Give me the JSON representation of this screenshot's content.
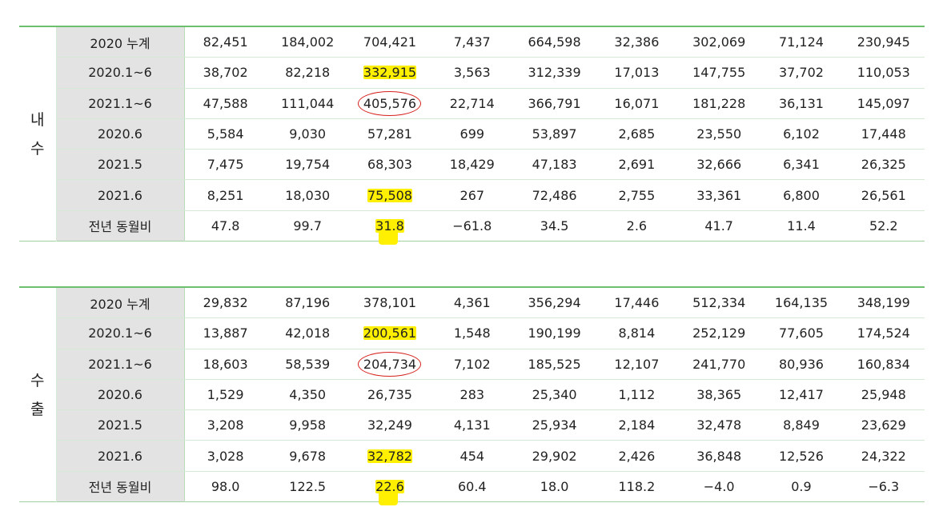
{
  "colors": {
    "accent_green": "#6cbf6c",
    "row_header_bg": "#e3e3e3",
    "highlight_yellow": "#ffef00",
    "circle_red": "#d6201c"
  },
  "domestic": {
    "group_label": [
      "내",
      "수"
    ],
    "rows": [
      {
        "label": "2020 누계",
        "values": [
          "82,451",
          "184,002",
          "704,421",
          "7,437",
          "664,598",
          "32,386",
          "302,069",
          "71,124",
          "230,945"
        ]
      },
      {
        "label": "2020.1~6",
        "values": [
          "38,702",
          "82,218",
          "332,915",
          "3,563",
          "312,339",
          "17,013",
          "147,755",
          "37,702",
          "110,053"
        ]
      },
      {
        "label": "2021.1~6",
        "values": [
          "47,588",
          "111,044",
          "405,576",
          "22,714",
          "366,791",
          "16,071",
          "181,228",
          "36,131",
          "145,097"
        ]
      },
      {
        "label": "2020.6",
        "values": [
          "5,584",
          "9,030",
          "57,281",
          "699",
          "53,897",
          "2,685",
          "23,550",
          "6,102",
          "17,448"
        ]
      },
      {
        "label": "2021.5",
        "values": [
          "7,475",
          "19,754",
          "68,303",
          "18,429",
          "47,183",
          "2,691",
          "32,666",
          "6,341",
          "26,325"
        ]
      },
      {
        "label": "2021.6",
        "values": [
          "8,251",
          "18,030",
          "75,508",
          "267",
          "72,486",
          "2,755",
          "33,361",
          "6,800",
          "26,561"
        ]
      },
      {
        "label": "전년 동월비",
        "values": [
          "47.8",
          "99.7",
          "31.8",
          "−61.8",
          "34.5",
          "2.6",
          "41.7",
          "11.4",
          "52.2"
        ]
      }
    ]
  },
  "export": {
    "group_label": [
      "수",
      "출"
    ],
    "rows": [
      {
        "label": "2020 누계",
        "values": [
          "29,832",
          "87,196",
          "378,101",
          "4,361",
          "356,294",
          "17,446",
          "512,334",
          "164,135",
          "348,199"
        ]
      },
      {
        "label": "2020.1~6",
        "values": [
          "13,887",
          "42,018",
          "200,561",
          "1,548",
          "190,199",
          "8,814",
          "252,129",
          "77,605",
          "174,524"
        ]
      },
      {
        "label": "2021.1~6",
        "values": [
          "18,603",
          "58,539",
          "204,734",
          "7,102",
          "185,525",
          "12,107",
          "241,770",
          "80,936",
          "160,834"
        ]
      },
      {
        "label": "2020.6",
        "values": [
          "1,529",
          "4,350",
          "26,735",
          "283",
          "25,340",
          "1,112",
          "38,365",
          "12,417",
          "25,948"
        ]
      },
      {
        "label": "2021.5",
        "values": [
          "3,208",
          "9,958",
          "32,249",
          "4,131",
          "25,934",
          "2,184",
          "32,478",
          "8,849",
          "23,629"
        ]
      },
      {
        "label": "2021.6",
        "values": [
          "3,028",
          "9,678",
          "32,782",
          "454",
          "29,902",
          "2,426",
          "36,848",
          "12,526",
          "24,322"
        ]
      },
      {
        "label": "전년 동월비",
        "values": [
          "98.0",
          "122.5",
          "22.6",
          "60.4",
          "18.0",
          "118.2",
          "−4.0",
          "0.9",
          "−6.3"
        ]
      }
    ]
  },
  "annotations": {
    "yellow_marks": [
      {
        "table": "domestic",
        "row": 1,
        "col": 2
      },
      {
        "table": "domestic",
        "row": 5,
        "col": 2
      },
      {
        "table": "domestic",
        "row": 6,
        "col": 2
      },
      {
        "table": "export",
        "row": 1,
        "col": 2
      },
      {
        "table": "export",
        "row": 5,
        "col": 2
      },
      {
        "table": "export",
        "row": 6,
        "col": 2
      }
    ],
    "red_circles": [
      {
        "table": "domestic",
        "row": 2,
        "col": 2
      },
      {
        "table": "export",
        "row": 2,
        "col": 2
      }
    ]
  }
}
